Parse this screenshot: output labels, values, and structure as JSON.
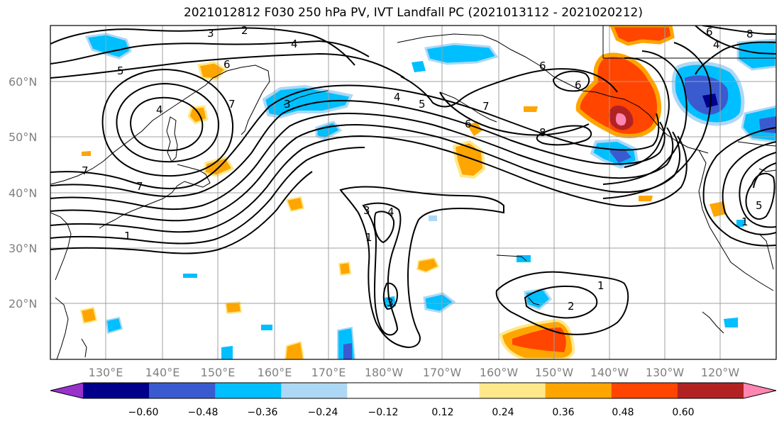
{
  "title": "2021012812 F030 250 hPa PV, IVT Landfall PC (2021013112 - 2021020212)",
  "lat_labels": [
    "60°N",
    "50°N",
    "40°N",
    "30°N",
    "20°N"
  ],
  "lon_labels": [
    "130°E",
    "140°E",
    "150°E",
    "160°E",
    "170°E",
    "180°W",
    "170°W",
    "160°W",
    "150°W",
    "140°W",
    "130°W",
    "120°W"
  ],
  "colorbar": {
    "colors": [
      "#9932cc",
      "#00008b",
      "#3a5bd0",
      "#00bfff",
      "#add8f5",
      "#ffffff",
      "#ffffff",
      "#ffe88a",
      "#ffa500",
      "#ff4500",
      "#b22222",
      "#ff86b0"
    ],
    "tick_labels": [
      "−0.60",
      "−0.48",
      "−0.36",
      "−0.24",
      "−0.12",
      "0.12",
      "0.24",
      "0.36",
      "0.48",
      "0.60"
    ]
  },
  "contour_labels": [
    "3",
    "2",
    "4",
    "5",
    "6",
    "7",
    "4",
    "1",
    "7",
    "3",
    "4",
    "5",
    "6",
    "7",
    "8",
    "6",
    "6",
    "1",
    "3",
    "4",
    "3",
    "1",
    "2",
    "1",
    "5",
    "6",
    "8",
    "4",
    "7"
  ]
}
